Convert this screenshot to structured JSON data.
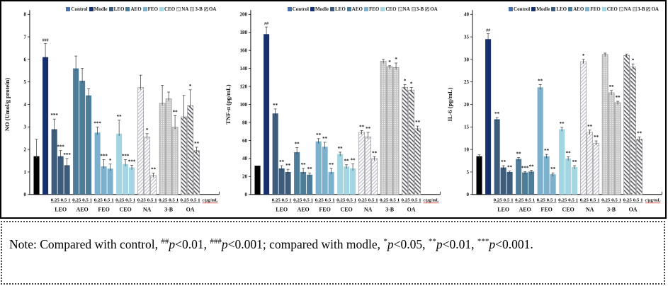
{
  "colors": {
    "control": "#000000",
    "modle": "#17316e",
    "leo": "#3d5c7c",
    "aeo": "#4e7d99",
    "feo": "#7cb1ce",
    "ceo": "#a3d5e3",
    "na_hatch": "#b9b9c8",
    "b3_gray": "#c7c7c7",
    "oa_stripe": "#5f5f68",
    "legend_control_swatch": "#4a70ab",
    "unit_label_underline": "#cc1111",
    "axis": "#111111"
  },
  "legend": {
    "position": "top-right",
    "items": [
      {
        "series": "control",
        "label": "Control"
      },
      {
        "series": "modle",
        "label": "Modle"
      },
      {
        "series": "leo",
        "label": "LEO"
      },
      {
        "series": "aeo",
        "label": "AEO"
      },
      {
        "series": "feo",
        "label": "FEO"
      },
      {
        "series": "ceo",
        "label": "CEO"
      },
      {
        "series": "na",
        "label": "NA"
      },
      {
        "series": "3b",
        "label": "3-B"
      },
      {
        "series": "oa",
        "label": "OA"
      }
    ]
  },
  "chart_data": [
    {
      "type": "bar",
      "id": "no",
      "ylabel": "NO (Umol/g protein)",
      "ylim": [
        0,
        8
      ],
      "ytick_step": 1,
      "grid": false,
      "x_end_label": "c/μg/mL",
      "groups": [
        {
          "name": "",
          "dose_label": "",
          "bars": [
            {
              "series": "control",
              "value": 1.7,
              "err": 0.75,
              "sig": ""
            }
          ]
        },
        {
          "name": "",
          "dose_label": "",
          "bars": [
            {
              "series": "modle",
              "value": 6.1,
              "err": 0.6,
              "sig": "###"
            }
          ]
        },
        {
          "name": "LEO",
          "dose_label": "0.25 0.5 1",
          "bars": [
            {
              "series": "leo",
              "value": 2.9,
              "err": 0.45,
              "sig": "***"
            },
            {
              "series": "leo",
              "value": 1.7,
              "err": 0.25,
              "sig": "***"
            },
            {
              "series": "leo",
              "value": 1.3,
              "err": 0.3,
              "sig": "***"
            }
          ]
        },
        {
          "name": "AEO",
          "dose_label": "0.25 0.5 1",
          "bars": [
            {
              "series": "aeo",
              "value": 5.6,
              "err": 0.55,
              "sig": ""
            },
            {
              "series": "aeo",
              "value": 5.05,
              "err": 0.55,
              "sig": ""
            },
            {
              "series": "aeo",
              "value": 4.4,
              "err": 0.3,
              "sig": ""
            }
          ]
        },
        {
          "name": "FEO",
          "dose_label": "0.25 0.5 1",
          "bars": [
            {
              "series": "feo",
              "value": 2.75,
              "err": 0.25,
              "sig": "***"
            },
            {
              "series": "feo",
              "value": 1.25,
              "err": 0.3,
              "sig": "***"
            },
            {
              "series": "feo",
              "value": 1.15,
              "err": 0.2,
              "sig": "*"
            }
          ]
        },
        {
          "name": "CEO",
          "dose_label": "0.25 0.5 1",
          "bars": [
            {
              "series": "ceo",
              "value": 2.7,
              "err": 0.6,
              "sig": "**"
            },
            {
              "series": "ceo",
              "value": 1.35,
              "err": 0.2,
              "sig": "***"
            },
            {
              "series": "ceo",
              "value": 1.2,
              "err": 0.1,
              "sig": "***"
            }
          ]
        },
        {
          "name": "NA",
          "dose_label": "0.25 0.5 1",
          "bars": [
            {
              "series": "na",
              "value": 4.75,
              "err": 0.55,
              "sig": ""
            },
            {
              "series": "na",
              "value": 2.55,
              "err": 0.15,
              "sig": "*"
            },
            {
              "series": "na",
              "value": 0.85,
              "err": 0.1,
              "sig": "**"
            }
          ]
        },
        {
          "name": "3-B",
          "dose_label": "0.25 0.5 1",
          "bars": [
            {
              "series": "3b",
              "value": 4.05,
              "err": 0.8,
              "sig": ""
            },
            {
              "series": "3b",
              "value": 4.25,
              "err": 0.3,
              "sig": ""
            },
            {
              "series": "3b",
              "value": 3.0,
              "err": 0.5,
              "sig": "**"
            }
          ]
        },
        {
          "name": "OA",
          "dose_label": "0.25 0.5 1",
          "bars": [
            {
              "series": "oa",
              "value": 3.45,
              "err": 0.95,
              "sig": ""
            },
            {
              "series": "oa",
              "value": 3.95,
              "err": 0.7,
              "sig": "*"
            },
            {
              "series": "oa",
              "value": 1.95,
              "err": 0.15,
              "sig": "**"
            }
          ]
        }
      ]
    },
    {
      "type": "bar",
      "id": "tnf",
      "ylabel": "TNF-α (pg/mL)",
      "ylim": [
        0,
        200
      ],
      "ytick_step": 20,
      "grid": false,
      "x_end_label": "c/μg/mL",
      "groups": [
        {
          "name": "",
          "dose_label": "",
          "bars": [
            {
              "series": "control",
              "value": 32,
              "err": 0,
              "sig": ""
            }
          ]
        },
        {
          "name": "",
          "dose_label": "",
          "bars": [
            {
              "series": "modle",
              "value": 178,
              "err": 8,
              "sig": "##"
            }
          ]
        },
        {
          "name": "LEO",
          "dose_label": "0.25 0.5 1",
          "bars": [
            {
              "series": "leo",
              "value": 90,
              "err": 5,
              "sig": "**"
            },
            {
              "series": "leo",
              "value": 29,
              "err": 3,
              "sig": "**"
            },
            {
              "series": "leo",
              "value": 25,
              "err": 3,
              "sig": "**"
            }
          ]
        },
        {
          "name": "AEO",
          "dose_label": "0.25 0.5 1",
          "bars": [
            {
              "series": "aeo",
              "value": 47,
              "err": 5,
              "sig": "**"
            },
            {
              "series": "aeo",
              "value": 25,
              "err": 4,
              "sig": "**"
            },
            {
              "series": "aeo",
              "value": 22,
              "err": 2,
              "sig": "**"
            }
          ]
        },
        {
          "name": "FEO",
          "dose_label": "0.25 0.5 1",
          "bars": [
            {
              "series": "feo",
              "value": 59,
              "err": 3,
              "sig": "**"
            },
            {
              "series": "feo",
              "value": 53,
              "err": 5,
              "sig": "**"
            },
            {
              "series": "feo",
              "value": 25,
              "err": 4,
              "sig": "**"
            }
          ]
        },
        {
          "name": "CEO",
          "dose_label": "0.25 0.5 1",
          "bars": [
            {
              "series": "ceo",
              "value": 45,
              "err": 2,
              "sig": "**"
            },
            {
              "series": "ceo",
              "value": 31,
              "err": 2,
              "sig": "**"
            },
            {
              "series": "ceo",
              "value": 29,
              "err": 5,
              "sig": "**"
            }
          ]
        },
        {
          "name": "NA",
          "dose_label": "0.25 0.5 1",
          "bars": [
            {
              "series": "na",
              "value": 69,
              "err": 2,
              "sig": "**"
            },
            {
              "series": "na",
              "value": 64,
              "err": 5,
              "sig": "**"
            },
            {
              "series": "na",
              "value": 40,
              "err": 2,
              "sig": "**"
            }
          ]
        },
        {
          "name": "3-B",
          "dose_label": "0.25 0.5 1",
          "bars": [
            {
              "series": "3b",
              "value": 148,
              "err": 2,
              "sig": ""
            },
            {
              "series": "3b",
              "value": 142,
              "err": 1,
              "sig": "*"
            },
            {
              "series": "3b",
              "value": 141,
              "err": 5,
              "sig": "*"
            }
          ]
        },
        {
          "name": "OA",
          "dose_label": "0.25 0.5 1",
          "bars": [
            {
              "series": "oa",
              "value": 119,
              "err": 3,
              "sig": "*"
            },
            {
              "series": "oa",
              "value": 116,
              "err": 3,
              "sig": "*"
            },
            {
              "series": "oa",
              "value": 73,
              "err": 3,
              "sig": "**"
            }
          ]
        }
      ]
    },
    {
      "type": "bar",
      "id": "il6",
      "ylabel": "IL-6 (pg/mL)",
      "ylim": [
        0,
        40
      ],
      "ytick_step": 5,
      "grid": false,
      "x_end_label": "c/μg/mL",
      "groups": [
        {
          "name": "",
          "dose_label": "",
          "bars": [
            {
              "series": "control",
              "value": 8.5,
              "err": 0.3,
              "sig": ""
            }
          ]
        },
        {
          "name": "",
          "dose_label": "",
          "bars": [
            {
              "series": "modle",
              "value": 34.5,
              "err": 1.2,
              "sig": "##"
            }
          ]
        },
        {
          "name": "LEO",
          "dose_label": "0.25 0.5 1",
          "bars": [
            {
              "series": "leo",
              "value": 16.7,
              "err": 0.4,
              "sig": "**"
            },
            {
              "series": "leo",
              "value": 6.0,
              "err": 0.4,
              "sig": "**"
            },
            {
              "series": "leo",
              "value": 5.0,
              "err": 0.2,
              "sig": "**"
            }
          ]
        },
        {
          "name": "AEO",
          "dose_label": "0.25 0.5 1",
          "bars": [
            {
              "series": "aeo",
              "value": 7.9,
              "err": 0.3,
              "sig": "**"
            },
            {
              "series": "aeo",
              "value": 4.9,
              "err": 0.2,
              "sig": "***"
            },
            {
              "series": "aeo",
              "value": 5.1,
              "err": 0.3,
              "sig": "**"
            }
          ]
        },
        {
          "name": "FEO",
          "dose_label": "0.25 0.5 1",
          "bars": [
            {
              "series": "feo",
              "value": 23.8,
              "err": 0.6,
              "sig": "**"
            },
            {
              "series": "feo",
              "value": 8.5,
              "err": 0.4,
              "sig": "**"
            },
            {
              "series": "feo",
              "value": 4.5,
              "err": 0.3,
              "sig": "**"
            }
          ]
        },
        {
          "name": "CEO",
          "dose_label": "0.25 0.5 1",
          "bars": [
            {
              "series": "ceo",
              "value": 14.5,
              "err": 0.4,
              "sig": "**"
            },
            {
              "series": "ceo",
              "value": 8.0,
              "err": 0.4,
              "sig": "**"
            },
            {
              "series": "ceo",
              "value": 6.1,
              "err": 0.3,
              "sig": "**"
            }
          ]
        },
        {
          "name": "NA",
          "dose_label": "0.25 0.5 1",
          "bars": [
            {
              "series": "na",
              "value": 29.5,
              "err": 0.5,
              "sig": "*"
            },
            {
              "series": "na",
              "value": 13.8,
              "err": 0.5,
              "sig": "**"
            },
            {
              "series": "na",
              "value": 11.4,
              "err": 0.5,
              "sig": "**"
            }
          ]
        },
        {
          "name": "3-B",
          "dose_label": "0.25 0.5 1",
          "bars": [
            {
              "series": "3b",
              "value": 31.1,
              "err": 0.3,
              "sig": ""
            },
            {
              "series": "3b",
              "value": 22.6,
              "err": 0.5,
              "sig": "**"
            },
            {
              "series": "3b",
              "value": 20.4,
              "err": 0.3,
              "sig": "**"
            }
          ]
        },
        {
          "name": "OA",
          "dose_label": "0.25 0.5 1",
          "bars": [
            {
              "series": "oa",
              "value": 30.9,
              "err": 0.3,
              "sig": ""
            },
            {
              "series": "oa",
              "value": 28.3,
              "err": 0.7,
              "sig": "*"
            },
            {
              "series": "oa",
              "value": 12.3,
              "err": 0.5,
              "sig": "**"
            }
          ]
        }
      ]
    }
  ],
  "note": {
    "segments": [
      {
        "style": "normal",
        "text": "Note: Compared with control, "
      },
      {
        "style": "sup",
        "text": "##"
      },
      {
        "style": "italic",
        "text": "p"
      },
      {
        "style": "normal",
        "text": "<0.01,  "
      },
      {
        "style": "sup",
        "text": "###"
      },
      {
        "style": "italic",
        "text": "p"
      },
      {
        "style": "normal",
        "text": "<0.001; compared with modle, "
      },
      {
        "style": "sup",
        "text": "*"
      },
      {
        "style": "italic",
        "text": "p"
      },
      {
        "style": "normal",
        "text": "<0.05,  "
      },
      {
        "style": "sup",
        "text": "**"
      },
      {
        "style": "italic",
        "text": "p"
      },
      {
        "style": "normal",
        "text": "<0.01,  "
      },
      {
        "style": "sup",
        "text": "***"
      },
      {
        "style": "italic",
        "text": "p"
      },
      {
        "style": "normal",
        "text": "<0.001."
      }
    ]
  }
}
